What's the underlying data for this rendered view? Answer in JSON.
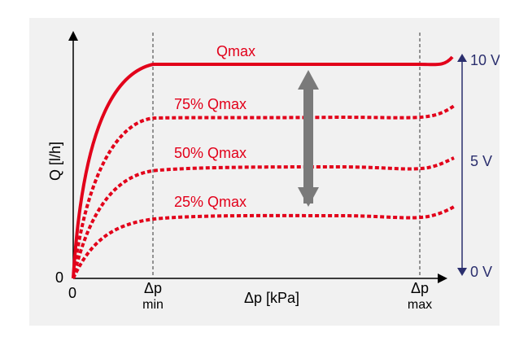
{
  "diagram": {
    "curve_labels": [
      "Qmax",
      "75% Qmax",
      "50% Qmax",
      "25% Qmax"
    ],
    "y_axis_label": "Q [l/h]",
    "x_axis_label": "Δp [kPa]",
    "origin_y_label": "0",
    "origin_x_label": "0",
    "dp_min_label": [
      "Δp",
      "min"
    ],
    "dp_max_label": [
      "Δp",
      "max"
    ],
    "voltage_labels": [
      "10 V",
      "5 V",
      "0 V"
    ],
    "colors": {
      "background": "#f1f1f1",
      "curve": "#e2001a",
      "axis": "#000000",
      "voltage": "#2b2f6e",
      "arrow": "#7a7a7a"
    }
  }
}
